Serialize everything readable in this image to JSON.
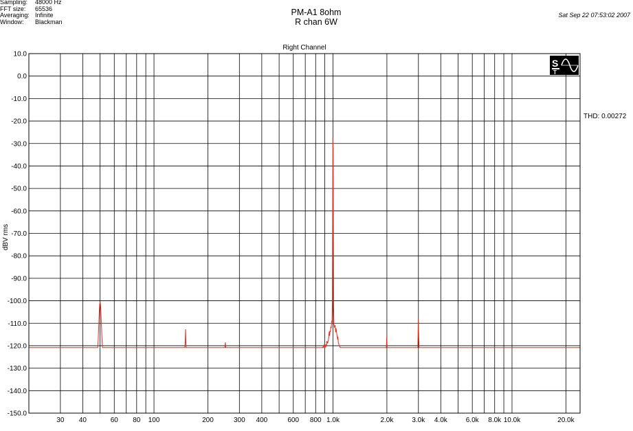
{
  "header": {
    "meta": [
      {
        "key": "Sampling:",
        "value": "48000 Hz"
      },
      {
        "key": "FFT size:",
        "value": "65536"
      },
      {
        "key": "Averaging:",
        "value": "Infinite"
      },
      {
        "key": "Window:",
        "value": "Blackman"
      }
    ],
    "title_line1": "PM-A1  8ohm",
    "title_line2": "R chan  6W",
    "timestamp": "Sat Sep 22 07:53:02 2007",
    "thd_label": "THD: 0.00272"
  },
  "logo": {
    "letters": "ST",
    "icon": "sine-wave-icon"
  },
  "chart_data": {
    "type": "line",
    "title": "Right Channel",
    "xlabel": "",
    "ylabel": "dBV rms",
    "x_scale": "log",
    "xlim": [
      20,
      24000
    ],
    "ylim": [
      -150,
      10
    ],
    "grid": true,
    "y_ticks": [
      10,
      0,
      -10,
      -20,
      -30,
      -40,
      -50,
      -60,
      -70,
      -80,
      -90,
      -100,
      -110,
      -120,
      -130,
      -140,
      -150
    ],
    "y_tick_labels": [
      "10.0",
      "0.0",
      "-10.0",
      "-20.0",
      "-30.0",
      "-40.0",
      "-50.0",
      "-60.0",
      "-70.0",
      "-80.0",
      "-90.0",
      "-100.0",
      "-110.0",
      "-120.0",
      "-130.0",
      "-140.0",
      "-150.0"
    ],
    "x_ticks": [
      30,
      40,
      60,
      80,
      100,
      200,
      300,
      400,
      600,
      800,
      1000,
      2000,
      3000,
      4000,
      6000,
      8000,
      10000,
      20000
    ],
    "x_tick_labels": [
      "30",
      "40",
      "60",
      "80",
      "100",
      "200",
      "300",
      "400",
      "600",
      "800",
      "1.0k",
      "2.0k",
      "3.0k",
      "4.0k",
      "6.0k",
      "8.0k",
      "10.0k",
      "20.0k"
    ],
    "x_gridlines": [
      30,
      40,
      50,
      60,
      70,
      80,
      90,
      100,
      200,
      300,
      400,
      500,
      600,
      700,
      800,
      900,
      1000,
      2000,
      3000,
      4000,
      5000,
      6000,
      7000,
      8000,
      9000,
      10000,
      20000
    ],
    "line_color": "#e8281e",
    "noise_floor": [
      [
        20,
        -127.5
      ],
      [
        22,
        -128.5
      ],
      [
        25,
        -126
      ],
      [
        28,
        -127.5
      ],
      [
        30,
        -128
      ],
      [
        33,
        -127
      ],
      [
        36,
        -128.5
      ],
      [
        38,
        -130
      ],
      [
        40,
        -130
      ],
      [
        43,
        -129
      ],
      [
        60,
        -130
      ],
      [
        70,
        -131.5
      ],
      [
        80,
        -132
      ],
      [
        90,
        -132
      ],
      [
        110,
        -132.5
      ],
      [
        150,
        -133
      ],
      [
        200,
        -133.5
      ],
      [
        300,
        -134
      ],
      [
        400,
        -134
      ],
      [
        500,
        -133.5
      ],
      [
        600,
        -133
      ],
      [
        700,
        -131.5
      ],
      [
        800,
        -127
      ],
      [
        850,
        -124
      ],
      [
        900,
        -120
      ],
      [
        2000,
        -132.5
      ],
      [
        3000,
        -133.5
      ],
      [
        5000,
        -134
      ],
      [
        8000,
        -134.5
      ],
      [
        10000,
        -135
      ],
      [
        15000,
        -135.5
      ],
      [
        20000,
        -134
      ],
      [
        24000,
        -132
      ]
    ],
    "peaks": [
      {
        "freq": 50,
        "level": -100.5,
        "width": 0.018
      },
      {
        "freq": 100,
        "level": -121,
        "width": 0.006
      },
      {
        "freq": 150,
        "level": -112.5,
        "width": 0.005
      },
      {
        "freq": 200,
        "level": -130,
        "width": 0.005
      },
      {
        "freq": 250,
        "level": -118,
        "width": 0.005
      },
      {
        "freq": 350,
        "level": -126.5,
        "width": 0.005
      },
      {
        "freq": 950,
        "level": -115,
        "width": 0.006
      },
      {
        "freq": 1000,
        "level": -10.5,
        "width": 0.004
      },
      {
        "freq": 1050,
        "level": -114.5,
        "width": 0.006
      },
      {
        "freq": 2000,
        "level": -113,
        "width": 0.003
      },
      {
        "freq": 3000,
        "level": -102,
        "width": 0.003
      },
      {
        "freq": 4000,
        "level": -130.5,
        "width": 0.003
      }
    ]
  }
}
